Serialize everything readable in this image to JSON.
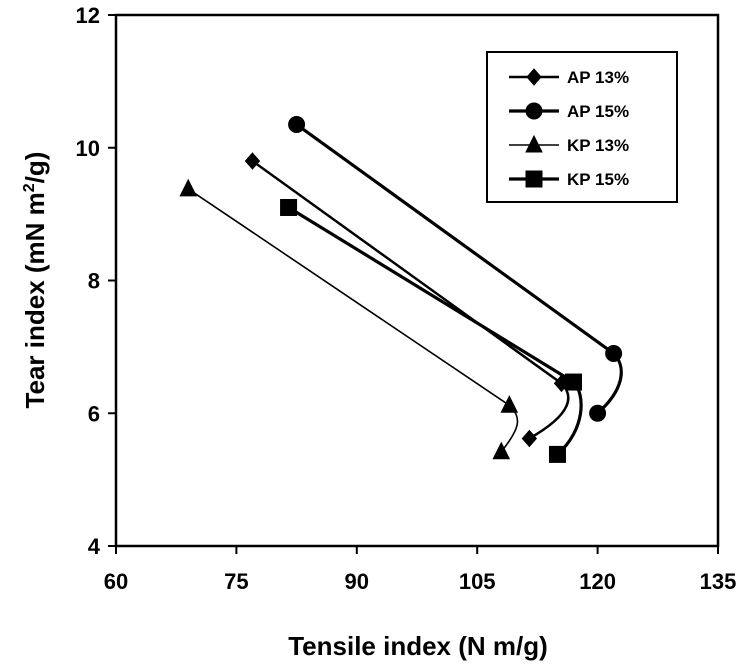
{
  "chart_data": {
    "type": "line",
    "xlabel": "Tensile index (N m/g)",
    "ylabel_parts": {
      "main": "Tear index (mN m",
      "sup": "2",
      "tail": "/g)"
    },
    "xlim": [
      60,
      135
    ],
    "ylim": [
      4,
      12
    ],
    "xticks": [
      "60",
      "75",
      "90",
      "105",
      "120",
      "135"
    ],
    "yticks": [
      "4",
      "6",
      "8",
      "10",
      "12"
    ],
    "xtick_values": [
      60,
      75,
      90,
      105,
      120,
      135
    ],
    "ytick_values": [
      4,
      6,
      8,
      10,
      12
    ],
    "grid": false,
    "legend_position": "top-right",
    "series": [
      {
        "name": "AP 13%",
        "marker": "diamond",
        "x": [
          77,
          115.5,
          111.5
        ],
        "y": [
          9.8,
          6.45,
          5.62
        ]
      },
      {
        "name": "AP 15%",
        "marker": "circle",
        "x": [
          82.5,
          122,
          120
        ],
        "y": [
          10.35,
          6.9,
          6.0
        ]
      },
      {
        "name": "KP 13%",
        "marker": "triangle",
        "x": [
          69,
          109,
          108
        ],
        "y": [
          9.38,
          6.12,
          5.42
        ]
      },
      {
        "name": "KP 15%",
        "marker": "square",
        "x": [
          81.5,
          117,
          115
        ],
        "y": [
          9.1,
          6.47,
          5.38
        ]
      }
    ]
  }
}
